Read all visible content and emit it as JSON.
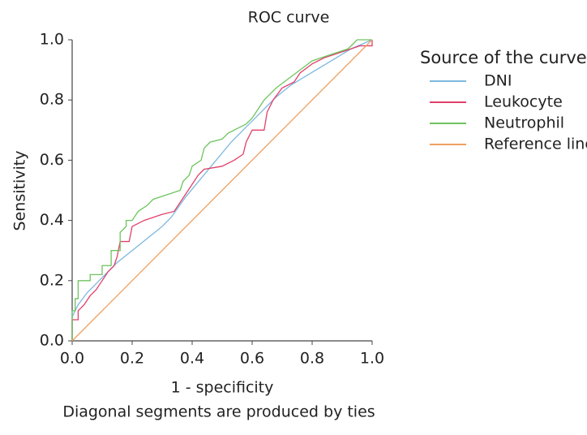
{
  "chart_data": {
    "type": "line",
    "title": "ROC curve",
    "x_label": "1 - specificity",
    "subtitle": "Diagonal segments are produced by ties",
    "y_label": "Sensitivity",
    "legend_title": "Source of the curve",
    "xlim": [
      0,
      1
    ],
    "ylim": [
      0,
      1
    ],
    "xticks": [
      {
        "value": 0,
        "label": "0.0"
      },
      0.2,
      0.4,
      0.6,
      0.8,
      {
        "value": 1,
        "label": "1.0"
      }
    ],
    "yticks": [
      {
        "value": 0,
        "label": "0.0"
      },
      0.2,
      0.4,
      0.6,
      0.8,
      {
        "value": 1,
        "label": "1.0"
      }
    ],
    "grid": false,
    "series": [
      {
        "name": "DNI",
        "color": "#7cb8e0",
        "x": [
          0,
          0,
          0.02,
          0.05,
          0.1,
          0.15,
          0.2,
          0.25,
          0.3,
          0.33,
          0.38,
          0.43,
          0.48,
          0.53,
          0.58,
          0.63,
          0.68,
          0.73,
          0.78,
          0.83,
          0.88,
          0.93,
          1
        ],
        "values": [
          0,
          0.08,
          0.12,
          0.16,
          0.21,
          0.26,
          0.3,
          0.34,
          0.38,
          0.41,
          0.48,
          0.54,
          0.6,
          0.66,
          0.71,
          0.76,
          0.81,
          0.85,
          0.88,
          0.91,
          0.94,
          0.97,
          1
        ]
      },
      {
        "name": "Leukocyte",
        "color": "#e0406a",
        "x": [
          0,
          0,
          0.02,
          0.02,
          0.04,
          0.06,
          0.08,
          0.1,
          0.12,
          0.14,
          0.15,
          0.16,
          0.19,
          0.2,
          0.24,
          0.3,
          0.34,
          0.36,
          0.38,
          0.4,
          0.42,
          0.44,
          0.5,
          0.54,
          0.57,
          0.58,
          0.6,
          0.64,
          0.65,
          0.67,
          0.7,
          0.74,
          0.76,
          0.8,
          0.84,
          0.9,
          0.96,
          1,
          1
        ],
        "values": [
          0,
          0.07,
          0.07,
          0.1,
          0.12,
          0.15,
          0.17,
          0.2,
          0.23,
          0.25,
          0.28,
          0.33,
          0.33,
          0.38,
          0.4,
          0.42,
          0.43,
          0.46,
          0.49,
          0.52,
          0.55,
          0.57,
          0.58,
          0.6,
          0.62,
          0.66,
          0.7,
          0.7,
          0.76,
          0.8,
          0.84,
          0.86,
          0.89,
          0.92,
          0.94,
          0.96,
          0.98,
          0.98,
          1
        ]
      },
      {
        "name": "Neutrophil",
        "color": "#6dc45e",
        "x": [
          0,
          0,
          0.01,
          0.01,
          0.02,
          0.02,
          0.06,
          0.06,
          0.1,
          0.1,
          0.13,
          0.13,
          0.16,
          0.16,
          0.18,
          0.18,
          0.2,
          0.22,
          0.25,
          0.27,
          0.3,
          0.33,
          0.36,
          0.37,
          0.39,
          0.4,
          0.43,
          0.44,
          0.46,
          0.5,
          0.52,
          0.56,
          0.58,
          0.6,
          0.62,
          0.64,
          0.66,
          0.68,
          0.72,
          0.76,
          0.8,
          0.86,
          0.92,
          0.95,
          1
        ],
        "values": [
          0,
          0.1,
          0.1,
          0.14,
          0.14,
          0.2,
          0.2,
          0.22,
          0.22,
          0.25,
          0.25,
          0.3,
          0.3,
          0.36,
          0.38,
          0.4,
          0.4,
          0.43,
          0.45,
          0.47,
          0.48,
          0.49,
          0.5,
          0.53,
          0.55,
          0.58,
          0.6,
          0.64,
          0.66,
          0.67,
          0.69,
          0.71,
          0.72,
          0.74,
          0.77,
          0.8,
          0.82,
          0.84,
          0.87,
          0.9,
          0.93,
          0.95,
          0.97,
          1,
          1
        ]
      },
      {
        "name": "Reference line",
        "color": "#f0a060",
        "x": [
          0,
          1
        ],
        "values": [
          0,
          1
        ]
      }
    ]
  }
}
